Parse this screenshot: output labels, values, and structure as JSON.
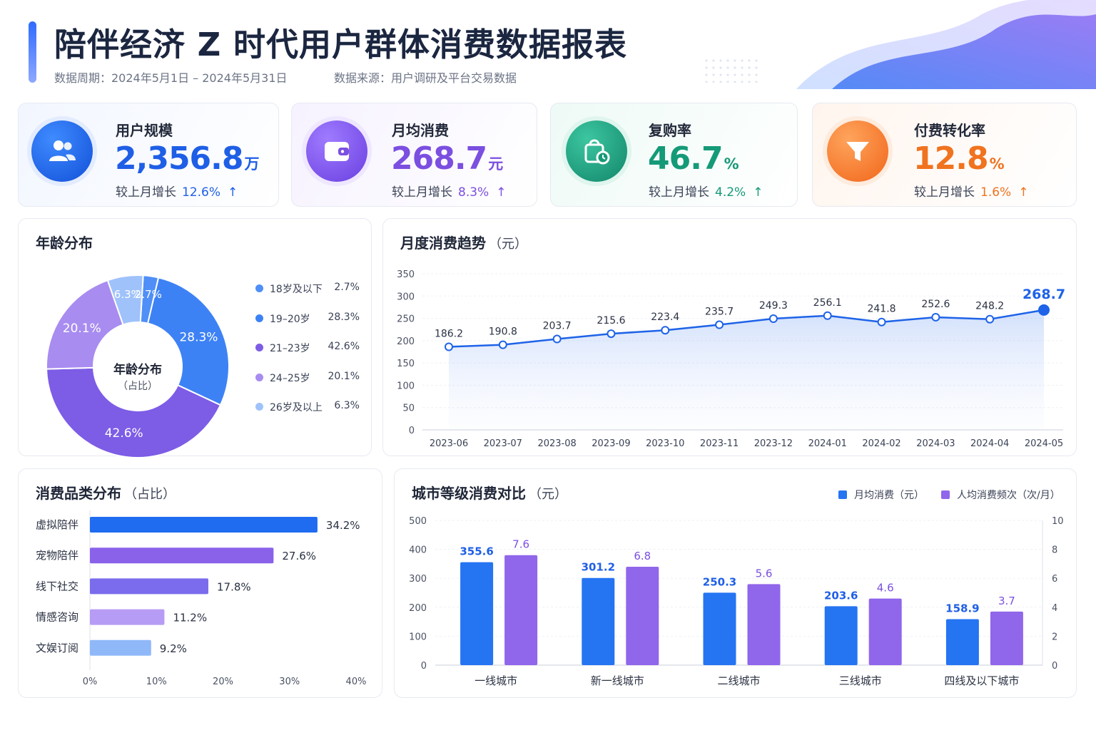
{
  "header": {
    "title": "陪伴经济 Z 时代用户群体消费数据报表",
    "period": "数据周期：2024年5月1日 – 2024年5月31日",
    "source": "数据来源：用户调研及平台交易数据"
  },
  "kpis": [
    {
      "label": "用户规模",
      "value": "2,356.8",
      "unit": "万",
      "change_label": "较上月增长",
      "change": "12.6%",
      "arrow": "↑",
      "color": "#1f5fe6",
      "icon": "users-icon"
    },
    {
      "label": "月均消费",
      "value": "268.7",
      "unit": "元",
      "change_label": "较上月增长",
      "change": "8.3%",
      "arrow": "↑",
      "color": "#7b4fe0",
      "icon": "wallet-icon"
    },
    {
      "label": "复购率",
      "value": "46.7",
      "unit": "%",
      "change_label": "较上月增长",
      "change": "4.2%",
      "arrow": "↑",
      "color": "#159a78",
      "icon": "shopping-bag-icon"
    },
    {
      "label": "付费转化率",
      "value": "12.8",
      "unit": "%",
      "change_label": "较上月增长",
      "change": "1.6%",
      "arrow": "↑",
      "color": "#f0731f",
      "icon": "funnel-icon"
    }
  ],
  "chart_data": [
    {
      "type": "pie",
      "title": "年龄分布",
      "center_label": "年龄分布",
      "center_sub": "（占比）",
      "categories": [
        "18岁及以下",
        "19–20岁",
        "21–23岁",
        "24–25岁",
        "26岁及以上"
      ],
      "values": [
        2.7,
        28.3,
        42.6,
        20.1,
        6.3
      ],
      "value_labels": [
        "2.7%",
        "28.3%",
        "42.6%",
        "20.1%",
        "6.3%"
      ],
      "colors": [
        "#4f8ff7",
        "#3d82f5",
        "#7d5ce6",
        "#a88cf0",
        "#9fc2fb"
      ]
    },
    {
      "type": "line",
      "title": "月度消费趋势",
      "title_sub": "（元）",
      "x": [
        "2023-06",
        "2023-07",
        "2023-08",
        "2023-09",
        "2023-10",
        "2023-11",
        "2023-12",
        "2024-01",
        "2024-02",
        "2024-03",
        "2024-04",
        "2024-05"
      ],
      "values": [
        186.2,
        190.8,
        203.7,
        215.6,
        223.4,
        235.7,
        249.3,
        256.1,
        241.8,
        252.6,
        248.2,
        268.7
      ],
      "value_labels": [
        "186.2",
        "190.8",
        "203.7",
        "215.6",
        "223.4",
        "235.7",
        "249.3",
        "256.1",
        "241.8",
        "252.6",
        "248.2",
        "268.7"
      ],
      "ylim": [
        0,
        350
      ],
      "yticks": [
        "0",
        "50",
        "100",
        "150",
        "200",
        "250",
        "300",
        "350"
      ],
      "grid": true,
      "color": "#1e63e8"
    },
    {
      "type": "bar",
      "orientation": "horizontal",
      "title": "消费品类分布",
      "title_sub": "（占比）",
      "categories": [
        "虚拟陪伴",
        "宠物陪伴",
        "线下社交",
        "情感咨询",
        "文娱订阅"
      ],
      "values": [
        34.2,
        27.6,
        17.8,
        11.2,
        9.2
      ],
      "value_labels": [
        "34.2%",
        "27.6%",
        "17.8%",
        "11.2%",
        "9.2%"
      ],
      "xlim": [
        0,
        40
      ],
      "xticks": [
        "0%",
        "10%",
        "20%",
        "30%",
        "40%"
      ],
      "colors": [
        "#1f6cf0",
        "#8a62ea",
        "#7a6cec",
        "#b79cf5",
        "#8fb8f8"
      ]
    },
    {
      "type": "bar",
      "title": "城市等级消费对比",
      "title_sub": "（元）",
      "categories": [
        "一线城市",
        "新一线城市",
        "二线城市",
        "三线城市",
        "四线及以下城市"
      ],
      "series": [
        {
          "name": "月均消费（元）",
          "values": [
            355.6,
            301.2,
            250.3,
            203.6,
            158.9
          ],
          "labels": [
            "355.6",
            "301.2",
            "250.3",
            "203.6",
            "158.9"
          ],
          "color": "#2574f2",
          "axis": "left"
        },
        {
          "name": "人均消费频次（次/月）",
          "values": [
            7.6,
            6.8,
            5.6,
            4.6,
            3.7
          ],
          "labels": [
            "7.6",
            "6.8",
            "5.6",
            "4.6",
            "3.7"
          ],
          "color": "#9066ea",
          "axis": "right"
        }
      ],
      "ylim_left": [
        0,
        500
      ],
      "yticks_left": [
        "0",
        "100",
        "200",
        "300",
        "400",
        "500"
      ],
      "ylim_right": [
        0,
        10
      ],
      "yticks_right": [
        "0",
        "2",
        "4",
        "6",
        "8",
        "10"
      ],
      "legend": "top-right"
    }
  ]
}
